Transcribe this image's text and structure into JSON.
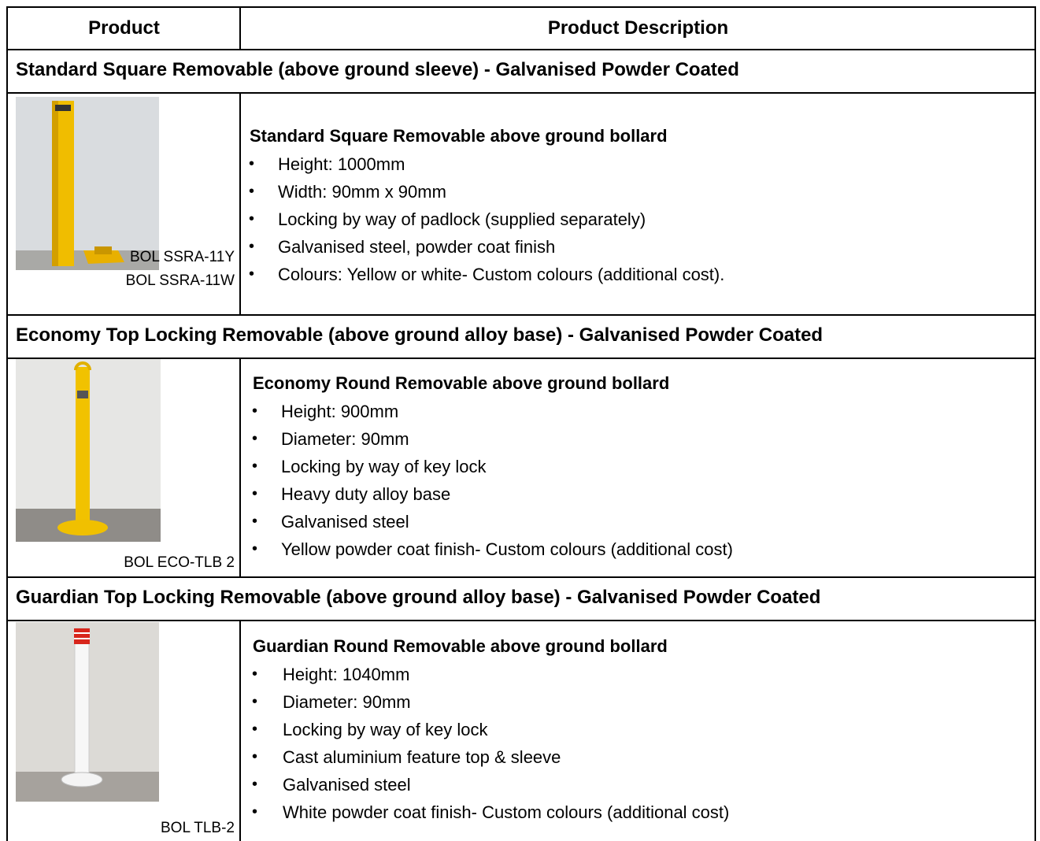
{
  "table": {
    "columns": [
      "Product",
      "Product Description"
    ],
    "sections": [
      {
        "title": "Standard Square Removable (above ground sleeve) - Galvanised Powder Coated",
        "codes": [
          "BOL SSRA-11Y",
          "BOL SSRA-11W"
        ],
        "heading": "Standard Square Removable above ground bollard",
        "items": [
          "Height: 1000mm",
          "Width: 90mm x 90mm",
          "Locking by way of padlock (supplied separately)",
          "Galvanised steel, powder coat finish",
          "Colours: Yellow or white- Custom colours (additional cost)."
        ]
      },
      {
        "title": "Economy Top Locking Removable (above ground alloy base) - Galvanised Powder Coated",
        "codes": [
          "BOL ECO-TLB 2"
        ],
        "heading": "Economy Round Removable above ground bollard",
        "items": [
          "Height: 900mm",
          "Diameter: 90mm",
          "Locking by way of key lock",
          "Heavy duty alloy base",
          "Galvanised steel",
          "Yellow powder coat finish- Custom colours (additional cost)"
        ]
      },
      {
        "title": "Guardian Top Locking Removable (above ground alloy base) - Galvanised Powder Coated",
        "codes": [
          "BOL TLB-2"
        ],
        "heading": "Guardian Round Removable above ground bollard",
        "items": [
          "Height: 1040mm",
          "Diameter: 90mm",
          "Locking by way of key lock",
          "Cast aluminium feature top & sleeve",
          "Galvanised steel",
          "White powder coat finish- Custom colours (additional cost)"
        ]
      }
    ]
  }
}
